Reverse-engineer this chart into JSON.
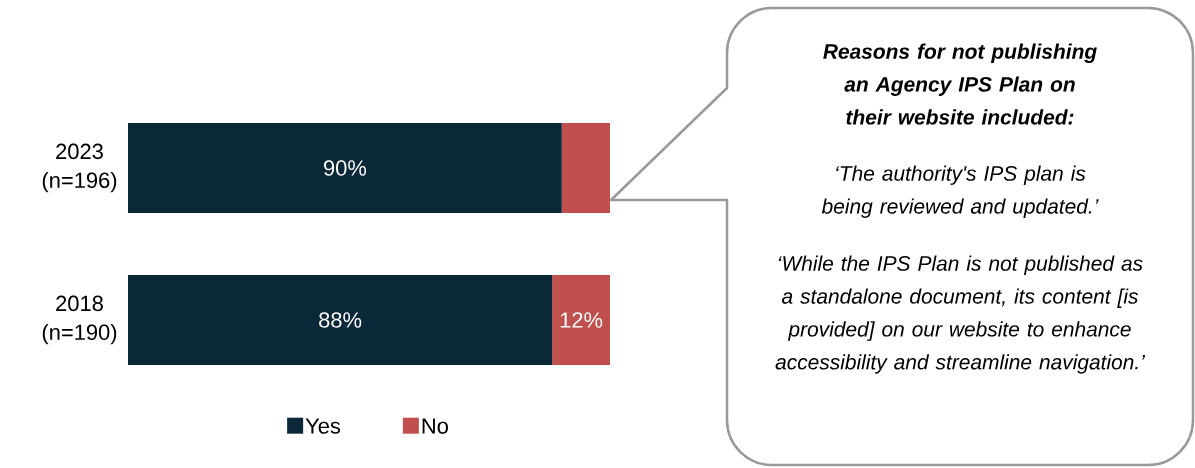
{
  "chart_data": {
    "type": "bar",
    "orientation": "horizontal",
    "stacked": true,
    "categories": [
      "2023 (n=196)",
      "2018 (n=190)"
    ],
    "series": [
      {
        "name": "Yes",
        "color": "#0b2838",
        "values": [
          90,
          88
        ],
        "value_labels": [
          "90%",
          "88%"
        ]
      },
      {
        "name": "No",
        "color": "#c0504d",
        "values": [
          10,
          12
        ],
        "value_labels": [
          null,
          "12%"
        ]
      }
    ],
    "xlim": [
      0,
      100
    ],
    "tick_labels": "y",
    "legend": "bottom",
    "annotations": [
      "Reasons for not publishing an Agency IPS Plan on their website included:",
      "‘The authority's IPS plan is being reviewed and updated.’",
      "‘While the IPS Plan is not published as a standalone document, its content [is provided] on our website to enhance accessibility and streamline navigation.’"
    ]
  }
}
